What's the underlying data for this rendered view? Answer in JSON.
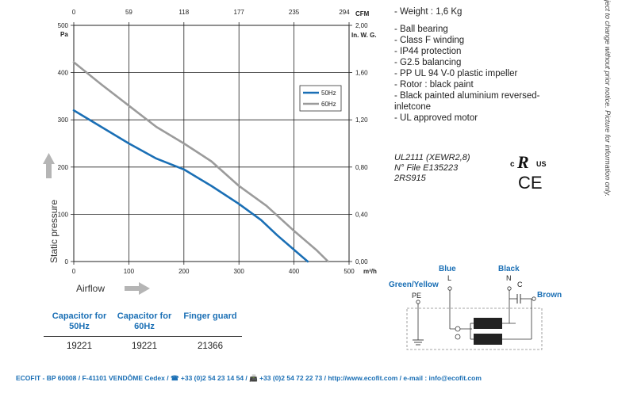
{
  "chart_data": {
    "type": "line",
    "xlabel": "Airflow",
    "ylabel": "Static pressure",
    "x_units": "m³/h",
    "y_units": "Pa",
    "x_ticks": [
      0,
      100,
      200,
      300,
      400,
      500
    ],
    "y_ticks": [
      0,
      100,
      200,
      300,
      400,
      500
    ],
    "top_axis": {
      "unit": "CFM",
      "ticks": [
        "0",
        "59",
        "118",
        "177",
        "235",
        "294"
      ]
    },
    "right_axis": {
      "unit": "In. W. G.",
      "ticks": [
        "0,00",
        "0,40",
        "0,80",
        "1,20",
        "1,60",
        "2,00"
      ]
    },
    "xlim": [
      0,
      500
    ],
    "ylim": [
      0,
      500
    ],
    "grid": true,
    "legend_position": "top-right",
    "series": [
      {
        "name": "50Hz",
        "color": "#1a6fb5",
        "x": [
          0,
          50,
          100,
          150,
          200,
          250,
          300,
          340,
          370,
          400,
          425
        ],
        "y": [
          320,
          285,
          250,
          218,
          195,
          160,
          122,
          88,
          55,
          25,
          0
        ]
      },
      {
        "name": "60Hz",
        "color": "#9b9b9b",
        "x": [
          0,
          50,
          100,
          150,
          200,
          250,
          300,
          350,
          400,
          440,
          462
        ],
        "y": [
          422,
          375,
          330,
          285,
          250,
          212,
          160,
          118,
          65,
          25,
          0
        ]
      }
    ]
  },
  "specs": [
    "- Weight : 1,6 Kg",
    "- Ball bearing",
    "- Class F winding",
    "- IP44 protection",
    "- G2.5 balancing",
    "- PP UL 94 V-0 plastic impeller",
    "- Rotor : black paint",
    "- Black painted aluminium reversed-",
    "inletcone",
    "- UL approved motor"
  ],
  "certification": {
    "line1": "UL2111 (XEWR2,8)",
    "line2": "N° File E135223",
    "line3": "2RS915",
    "ul_text": "c UL us",
    "ce_text": "CE"
  },
  "side_note": "ject to change without prior notice. Picture for information only.",
  "table": {
    "headers": [
      "Capacitor for 50Hz",
      "Capacitor for 60Hz",
      "Finger guard"
    ],
    "values": [
      "19221",
      "19221",
      "21366"
    ]
  },
  "wiring": {
    "blue": "Blue",
    "black": "Black",
    "green_yellow": "Green/Yellow",
    "brown": "Brown",
    "l": "L",
    "n": "N",
    "c": "C",
    "pe": "PE"
  },
  "footer": "ECOFIT - BP 60008 / F-41101 VENDÔME Cedex / ☎ +33 (0)2 54 23 14 54 / 📠 +33 (0)2 54 72 22 73 / http://www.ecofit.com / e-mail : info@ecofit.com"
}
